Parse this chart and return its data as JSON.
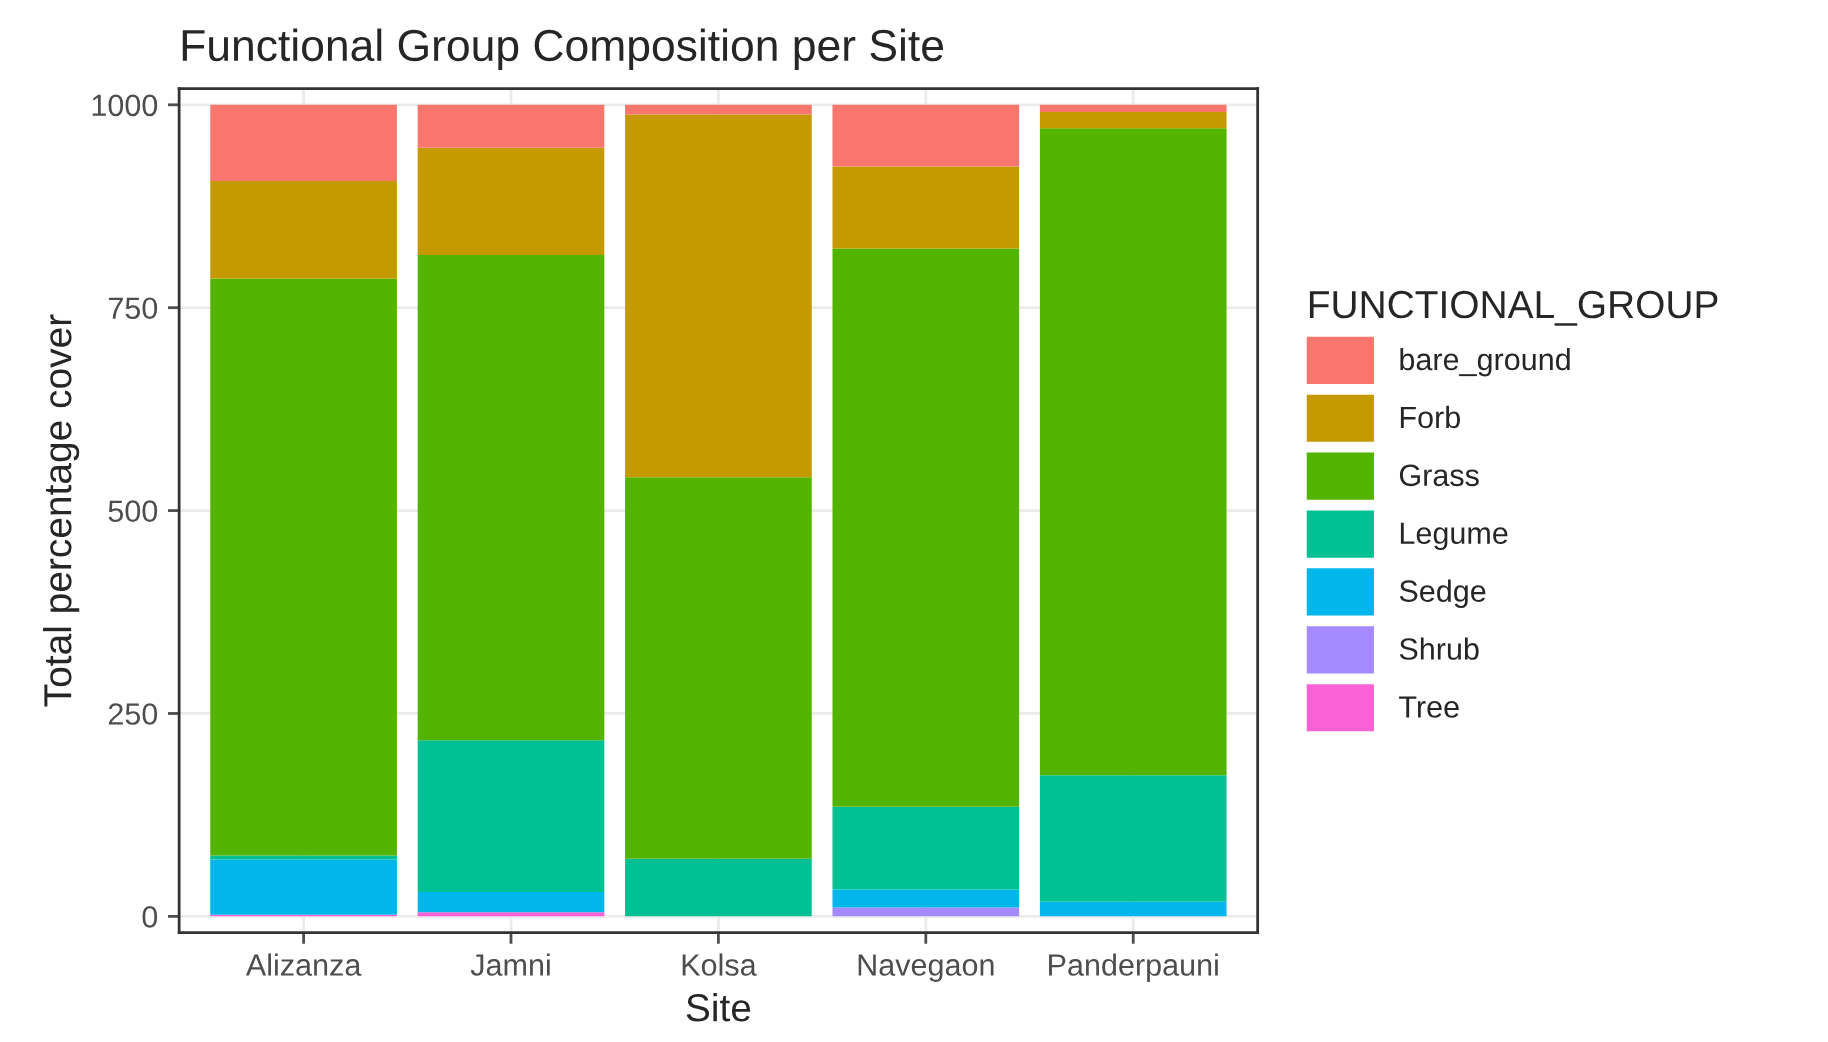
{
  "chart_data": {
    "type": "bar",
    "title": "Functional Group Composition per Site",
    "xlabel": "Site",
    "ylabel": "Total percentage cover",
    "legend_title": "FUNCTIONAL_GROUP",
    "categories": [
      "Alizanza",
      "Jamni",
      "Kolsa",
      "Navegaon",
      "Panderpauni"
    ],
    "stacked": true,
    "ylim": [
      -20,
      1020
    ],
    "yticks": [
      0,
      250,
      500,
      750,
      1000
    ],
    "grid": true,
    "legend": "right",
    "series": [
      {
        "name": "Tree",
        "color": "#fb61d7",
        "values": [
          2,
          5,
          0,
          0,
          0
        ]
      },
      {
        "name": "Shrub",
        "color": "#a58aff",
        "values": [
          0,
          0,
          0,
          11,
          0
        ]
      },
      {
        "name": "Sedge",
        "color": "#00b6eb",
        "values": [
          68,
          25,
          0,
          22,
          18
        ]
      },
      {
        "name": "Legume",
        "color": "#00c094",
        "values": [
          5,
          187,
          71,
          102,
          156
        ]
      },
      {
        "name": "Grass",
        "color": "#53b400",
        "values": [
          711,
          598,
          470,
          688,
          797
        ]
      },
      {
        "name": "Forb",
        "color": "#c49a00",
        "values": [
          120,
          132,
          447,
          101,
          20
        ]
      },
      {
        "name": "bare_ground",
        "color": "#f8766d",
        "values": [
          94,
          53,
          12,
          76,
          9
        ]
      }
    ]
  }
}
